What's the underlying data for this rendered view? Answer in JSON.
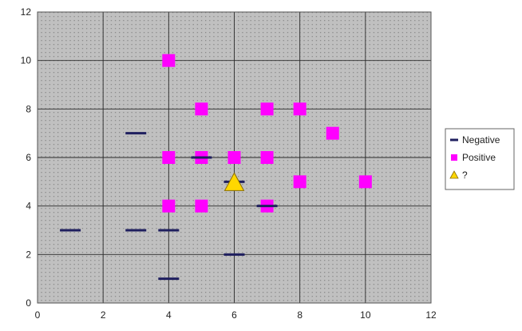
{
  "chart_data": {
    "type": "scatter",
    "title": "",
    "xlabel": "",
    "ylabel": "",
    "xlim": [
      0,
      12
    ],
    "ylim": [
      0,
      12
    ],
    "x_ticks": [
      0,
      2,
      4,
      6,
      8,
      10,
      12
    ],
    "y_ticks": [
      0,
      2,
      4,
      6,
      8,
      10,
      12
    ],
    "grid": true,
    "plot_background": "#c0c0c0",
    "legend_position": "right",
    "series": [
      {
        "name": "Negative",
        "marker": "dash",
        "color": "#1f1f5f",
        "points": [
          {
            "x": 1,
            "y": 3
          },
          {
            "x": 3,
            "y": 3
          },
          {
            "x": 3,
            "y": 7
          },
          {
            "x": 4,
            "y": 3
          },
          {
            "x": 4,
            "y": 1
          },
          {
            "x": 5,
            "y": 6
          },
          {
            "x": 6,
            "y": 5
          },
          {
            "x": 6,
            "y": 2
          },
          {
            "x": 7,
            "y": 4
          }
        ]
      },
      {
        "name": "Positive",
        "marker": "square",
        "color": "#ff00ff",
        "points": [
          {
            "x": 4,
            "y": 10
          },
          {
            "x": 4,
            "y": 6
          },
          {
            "x": 4,
            "y": 4
          },
          {
            "x": 5,
            "y": 8
          },
          {
            "x": 5,
            "y": 6
          },
          {
            "x": 5,
            "y": 4
          },
          {
            "x": 6,
            "y": 6
          },
          {
            "x": 7,
            "y": 8
          },
          {
            "x": 7,
            "y": 6
          },
          {
            "x": 7,
            "y": 4
          },
          {
            "x": 8,
            "y": 8
          },
          {
            "x": 8,
            "y": 5
          },
          {
            "x": 9,
            "y": 7
          },
          {
            "x": 10,
            "y": 5
          }
        ]
      },
      {
        "name": "?",
        "marker": "triangle",
        "color": "#ffd700",
        "points": [
          {
            "x": 6,
            "y": 5
          }
        ]
      }
    ]
  }
}
